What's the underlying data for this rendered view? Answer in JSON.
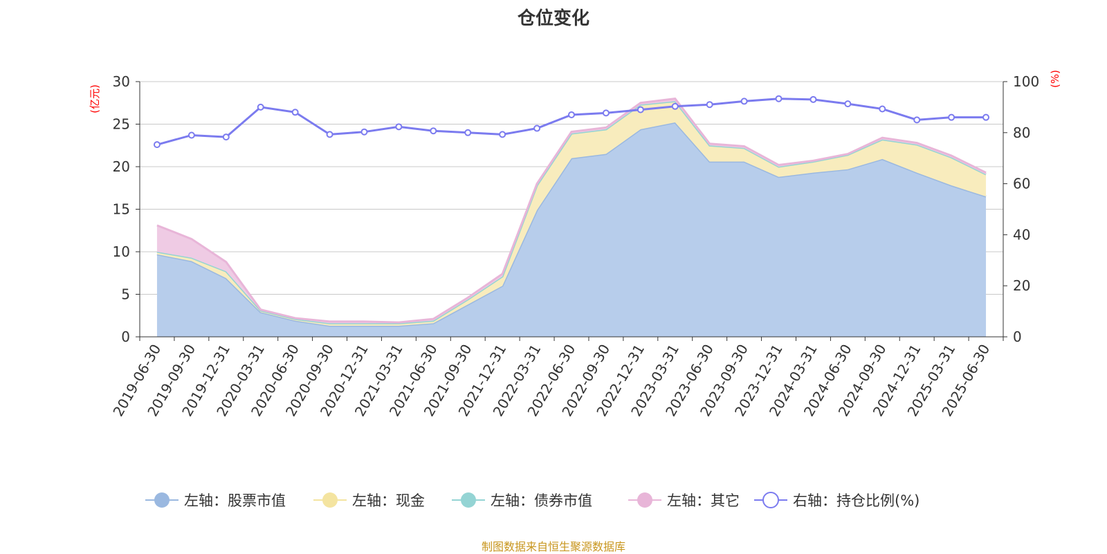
{
  "chart_data": {
    "type": "area",
    "title": "仓位变化",
    "left_axis_unit": "(亿元)",
    "right_axis_unit": "(%)",
    "ylim_left": [
      0,
      30
    ],
    "yticks_left": [
      0,
      5,
      10,
      15,
      20,
      25,
      30
    ],
    "ylim_right": [
      0,
      100
    ],
    "yticks_right": [
      0,
      20,
      40,
      60,
      80,
      100
    ],
    "grid": true,
    "stacked": true,
    "legend_position": "bottom",
    "categories": [
      "2019-06-30",
      "2019-09-30",
      "2019-12-31",
      "2020-03-31",
      "2020-06-30",
      "2020-09-30",
      "2020-12-31",
      "2021-03-31",
      "2021-06-30",
      "2021-09-30",
      "2021-12-31",
      "2022-03-31",
      "2022-06-30",
      "2022-09-30",
      "2022-12-31",
      "2023-03-31",
      "2023-06-30",
      "2023-09-30",
      "2023-12-31",
      "2024-03-31",
      "2024-06-30",
      "2024-09-30",
      "2024-12-31",
      "2025-03-31",
      "2025-06-30"
    ],
    "series": [
      {
        "name": "左轴：股票市值",
        "axis": "left",
        "kind": "area",
        "color": "#9ab8e0",
        "fill": "#b7cdeb",
        "values": [
          9.7,
          8.9,
          6.9,
          2.9,
          1.9,
          1.3,
          1.3,
          1.3,
          1.6,
          3.8,
          6.0,
          14.9,
          21.0,
          21.5,
          24.4,
          25.2,
          20.6,
          20.6,
          18.8,
          19.3,
          19.7,
          20.9,
          19.3,
          17.8,
          16.5
        ]
      },
      {
        "name": "左轴：现金",
        "axis": "left",
        "kind": "area",
        "color": "#f4e4a0",
        "fill": "#f8ecbd",
        "values": [
          0.3,
          0.4,
          0.8,
          0.2,
          0.2,
          0.3,
          0.3,
          0.3,
          0.3,
          0.6,
          1.1,
          2.9,
          2.9,
          2.9,
          2.9,
          2.5,
          1.9,
          1.6,
          1.2,
          1.3,
          1.7,
          2.3,
          3.3,
          3.3,
          2.6
        ]
      },
      {
        "name": "左轴：债券市值",
        "axis": "left",
        "kind": "area",
        "color": "#94d4d4",
        "fill": "#bfe5e5",
        "values": [
          0,
          0,
          0,
          0,
          0,
          0,
          0,
          0,
          0,
          0,
          0,
          0,
          0,
          0,
          0,
          0,
          0,
          0,
          0,
          0,
          0,
          0,
          0,
          0,
          0
        ]
      },
      {
        "name": "左轴：其它",
        "axis": "left",
        "kind": "area",
        "color": "#e8b5d8",
        "fill": "#efcbe4",
        "values": [
          3.1,
          2.2,
          1.1,
          0.1,
          0.1,
          0.2,
          0.2,
          0.1,
          0.2,
          0.2,
          0.3,
          0.2,
          0.2,
          0.2,
          0.2,
          0.3,
          0.2,
          0.2,
          0.2,
          0.1,
          0.1,
          0.2,
          0.2,
          0.2,
          0.2
        ]
      },
      {
        "name": "右轴：持仓比例(%)",
        "axis": "right",
        "kind": "line",
        "color": "#7b7bef",
        "values": [
          75.3,
          79.0,
          78.3,
          90.0,
          88.0,
          79.3,
          80.3,
          82.3,
          80.7,
          80.0,
          79.3,
          81.7,
          87.0,
          87.7,
          89.0,
          90.3,
          91.0,
          92.3,
          93.3,
          93.0,
          91.3,
          89.3,
          85.0,
          86.0,
          86.0
        ]
      }
    ]
  },
  "source_note": "制图数据来自恒生聚源数据库"
}
